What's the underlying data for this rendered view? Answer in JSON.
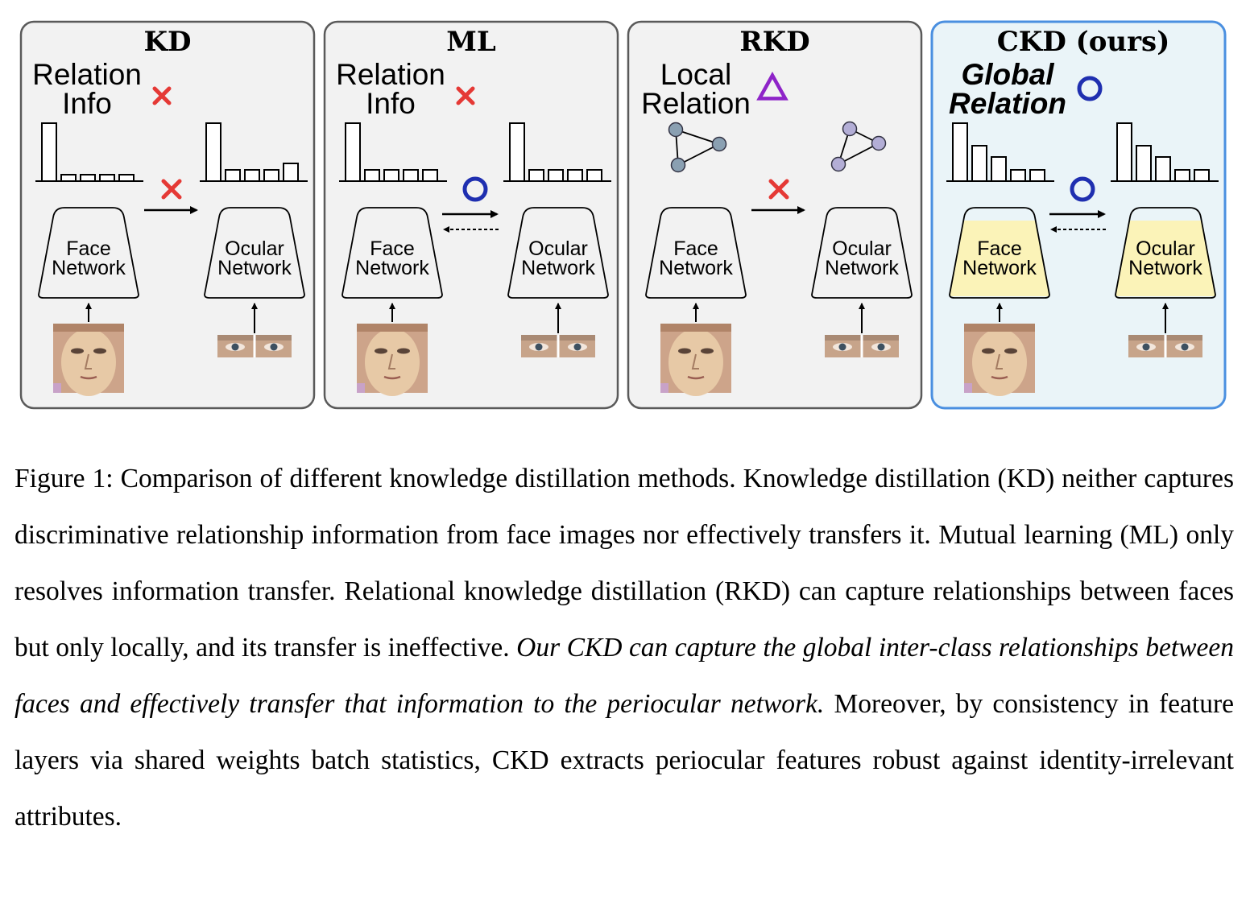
{
  "panels": [
    {
      "title": "KD",
      "relation_lines": [
        "Relation",
        "Info"
      ],
      "relation_style": "plain",
      "relation_symbol": "x",
      "transfer_symbol": "x",
      "arrows": "forward",
      "left_network": [
        "Face",
        "Network"
      ],
      "right_network": [
        "Ocular",
        "Network"
      ]
    },
    {
      "title": "ML",
      "relation_lines": [
        "Relation",
        "Info"
      ],
      "relation_style": "plain",
      "relation_symbol": "x",
      "transfer_symbol": "o",
      "arrows": "bidirectional",
      "left_network": [
        "Face",
        "Network"
      ],
      "right_network": [
        "Ocular",
        "Network"
      ]
    },
    {
      "title": "RKD",
      "relation_lines": [
        "Local",
        "Relation"
      ],
      "relation_style": "plain",
      "relation_symbol": "triangle",
      "transfer_symbol": "x",
      "arrows": "forward",
      "left_network": [
        "Face",
        "Network"
      ],
      "right_network": [
        "Ocular",
        "Network"
      ]
    },
    {
      "title": "CKD (ours)",
      "relation_lines": [
        "Global",
        "Relation"
      ],
      "relation_style": "bold-italic",
      "relation_symbol": "o",
      "transfer_symbol": "o",
      "arrows": "bidirectional",
      "left_network": [
        "Face",
        "Network"
      ],
      "right_network": [
        "Ocular",
        "Network"
      ]
    }
  ],
  "colors": {
    "panel_bg": "#f2f2f2",
    "panel_border": "#5a5a5a",
    "ours_bg": "#eaf4f8",
    "ours_border": "#4a8fe0",
    "cross": "#e53935",
    "circle": "#1f2fb0",
    "triangle": "#8e24c8",
    "graph_node_left": "#8aa0b2",
    "graph_node_right": "#b3aed6",
    "network_fill_ours": "#fbf3b8"
  },
  "caption": {
    "label": "Figure 1:",
    "text_before": " Comparison of different knowledge distillation methods. Knowledge distillation (KD) neither captures discriminative relationship information from face images nor effectively transfers it. Mutual learning (ML) only resolves information transfer. Relational knowledge distillation (RKD) can capture relationships between faces but only locally, and its transfer is ineffective. ",
    "text_italic": "Our CKD can capture the global inter-class relationships between faces and effectively transfer that information to the periocular network.",
    "text_after": " Moreover, by consistency in feature layers via shared weights batch statistics, CKD extracts periocular features robust against identity-irrelevant attributes."
  }
}
